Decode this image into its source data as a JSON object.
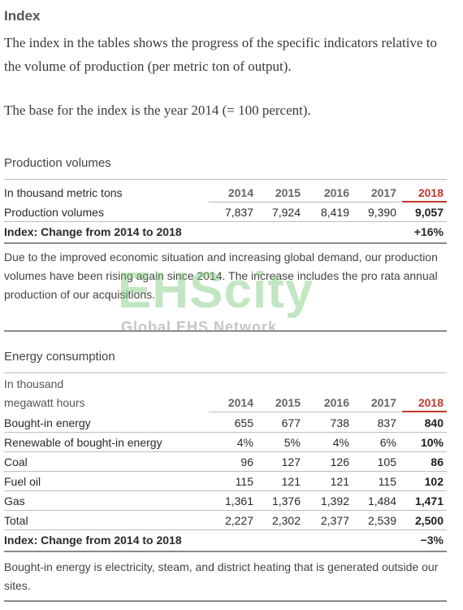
{
  "index": {
    "title": "Index",
    "intro": "The index in the tables shows the progress of the specific indicators relative to the volume of production (per metric ton of output).",
    "base": "The base for the index is the year 2014 (= 100 percent)."
  },
  "production": {
    "title": "Production volumes",
    "unit_label": "In thousand metric tons",
    "years": [
      "2014",
      "2015",
      "2016",
      "2017",
      "2018"
    ],
    "rows": [
      {
        "label": "Production volumes",
        "values": [
          "7,837",
          "7,924",
          "8,419",
          "9,390",
          "9,057"
        ]
      }
    ],
    "index_row": {
      "label": "Index: Change from 2014 to 2018",
      "value": "+16%"
    },
    "note": "Due to the improved economic situation and increasing global demand, our production volumes have been rising again since 2014. The increase includes the pro rata annual production of our acquisitions."
  },
  "energy": {
    "title": "Energy consumption",
    "unit_label_line1": "In thousand",
    "unit_label_line2": "megawatt hours",
    "years": [
      "2014",
      "2015",
      "2016",
      "2017",
      "2018"
    ],
    "rows": [
      {
        "label": "Bought-in energy",
        "values": [
          "655",
          "677",
          "738",
          "837",
          "840"
        ]
      },
      {
        "label": "Renewable of bought-in energy",
        "values": [
          "4%",
          "5%",
          "4%",
          "6%",
          "10%"
        ]
      },
      {
        "label": "Coal",
        "values": [
          "96",
          "127",
          "126",
          "105",
          "86"
        ]
      },
      {
        "label": "Fuel oil",
        "values": [
          "115",
          "121",
          "121",
          "115",
          "102"
        ]
      },
      {
        "label": "Gas",
        "values": [
          "1,361",
          "1,376",
          "1,392",
          "1,484",
          "1,471"
        ]
      },
      {
        "label": "Total",
        "values": [
          "2,227",
          "2,302",
          "2,377",
          "2,539",
          "2,500"
        ]
      }
    ],
    "index_row": {
      "label": "Index: Change from 2014 to 2018",
      "value": "−3%"
    },
    "note": "Bought-in energy is electricity, steam, and district heating that is generated outside our sites."
  },
  "watermark": {
    "brand": "EHScity",
    "tagline": "Global EHS Network"
  }
}
